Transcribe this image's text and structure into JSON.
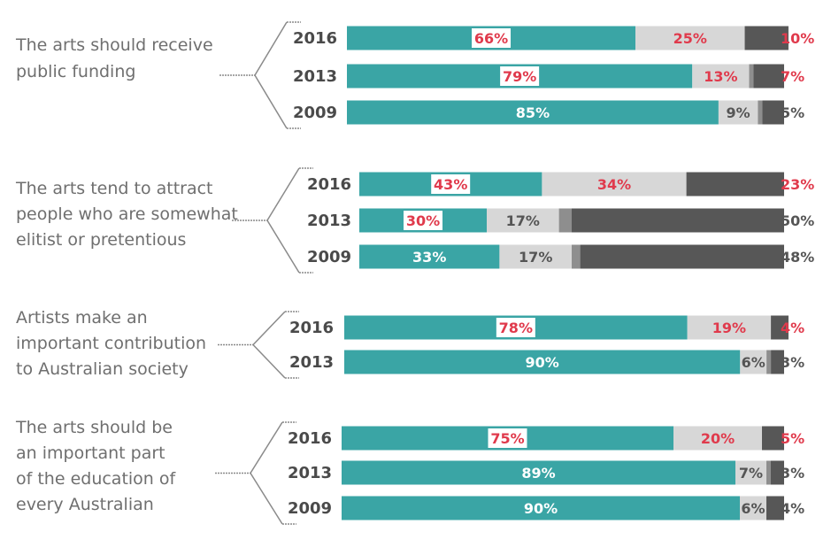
{
  "chart_data": {
    "type": "bar",
    "orientation": "horizontal",
    "stacked": true,
    "colors": {
      "agree": "#3aa5a5",
      "neutral": "#d7d7d7",
      "neutral_dark": "#8e8e8e",
      "disagree": "#575757",
      "highlight": "#e03a4c",
      "label_white": "#ffffff",
      "label_gray": "#555555"
    },
    "groups": [
      {
        "label_lines": [
          "The arts should receive",
          "public funding"
        ],
        "rows": [
          {
            "year": "2016",
            "agree": 66,
            "neutral": 25,
            "disagree": 10,
            "labels": {
              "agree": "66%",
              "neutral": "25%",
              "disagree": "10%"
            },
            "highlight": true
          },
          {
            "year": "2013",
            "agree": 79,
            "neutral": 13,
            "disagree": 7,
            "labels": {
              "agree": "79%",
              "neutral": "13%",
              "disagree": "7%"
            },
            "highlight": true
          },
          {
            "year": "2009",
            "agree": 85,
            "neutral": 9,
            "disagree": 5,
            "labels": {
              "agree": "85%",
              "neutral": "9%",
              "disagree": "5%"
            },
            "highlight": false
          }
        ]
      },
      {
        "label_lines": [
          "The arts tend to attract",
          "people who are somewhat",
          "elitist or pretentious"
        ],
        "rows": [
          {
            "year": "2016",
            "agree": 43,
            "neutral": 34,
            "disagree": 23,
            "labels": {
              "agree": "43%",
              "neutral": "34%",
              "disagree": "23%"
            },
            "highlight": true
          },
          {
            "year": "2013",
            "agree": 30,
            "neutral": 17,
            "disagree": 50,
            "labels": {
              "agree": "30%",
              "neutral": "17%",
              "disagree": "50%"
            },
            "highlight": "agree_only"
          },
          {
            "year": "2009",
            "agree": 33,
            "neutral": 17,
            "disagree": 48,
            "labels": {
              "agree": "33%",
              "neutral": "17%",
              "disagree": "48%"
            },
            "highlight": false
          }
        ]
      },
      {
        "label_lines": [
          "Artists make an",
          "important contribution",
          "to Australian society"
        ],
        "rows": [
          {
            "year": "2016",
            "agree": 78,
            "neutral": 19,
            "disagree": 4,
            "labels": {
              "agree": "78%",
              "neutral": "19%",
              "disagree": "4%"
            },
            "highlight": true
          },
          {
            "year": "2013",
            "agree": 90,
            "neutral": 6,
            "disagree": 3,
            "labels": {
              "agree": "90%",
              "neutral": "6%",
              "disagree": "3%"
            },
            "highlight": false
          }
        ]
      },
      {
        "label_lines": [
          "The arts should be",
          "an important part",
          "of the education of",
          "every Australian"
        ],
        "rows": [
          {
            "year": "2016",
            "agree": 75,
            "neutral": 20,
            "disagree": 5,
            "labels": {
              "agree": "75%",
              "neutral": "20%",
              "disagree": "5%"
            },
            "highlight": true
          },
          {
            "year": "2013",
            "agree": 89,
            "neutral": 7,
            "disagree": 3,
            "labels": {
              "agree": "89%",
              "neutral": "7%",
              "disagree": "3%"
            },
            "highlight": false
          },
          {
            "year": "2009",
            "agree": 90,
            "neutral": 6,
            "disagree": 4,
            "labels": {
              "agree": "90%",
              "neutral": "6%",
              "disagree": "4%"
            },
            "highlight": false
          }
        ]
      }
    ]
  }
}
